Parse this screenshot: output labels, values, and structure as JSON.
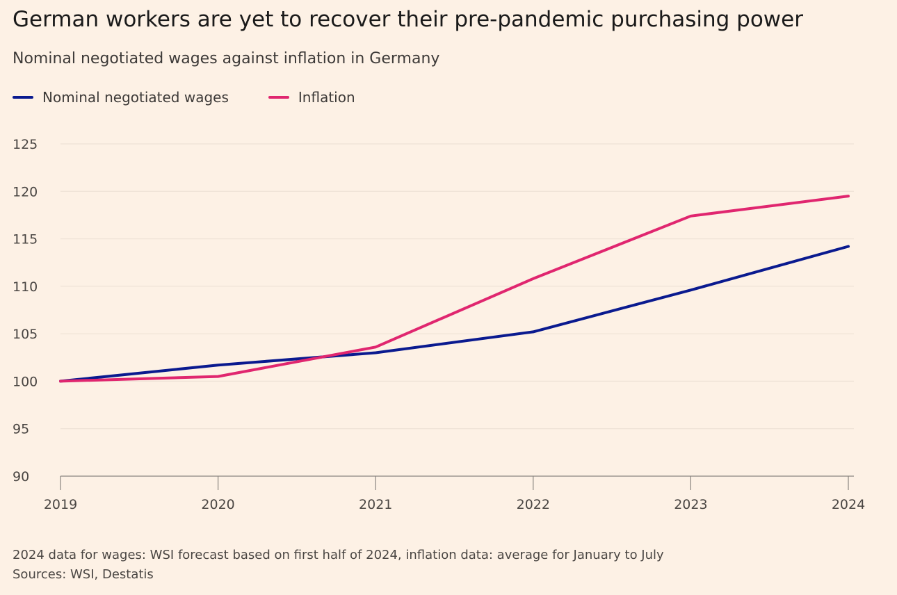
{
  "header": {
    "title": "German workers are yet to recover their pre-pandemic purchasing power",
    "subtitle": "Nominal negotiated wages against inflation in Germany"
  },
  "legend": {
    "wages_label": "Nominal negotiated wages",
    "inflation_label": "Inflation"
  },
  "colors": {
    "wages": "#0a1a8f",
    "inflation": "#e0266f",
    "gridline": "#ece0d3",
    "axis": "#8a8580"
  },
  "footer": {
    "note": "2024 data for wages: WSI forecast based on first half of 2024, inflation data: average for January to July",
    "sources": "Sources: WSI, Destatis"
  },
  "chart_data": {
    "type": "line",
    "title": "German workers are yet to recover their pre-pandemic purchasing power",
    "subtitle": "Nominal negotiated wages against inflation in Germany",
    "xlabel": "",
    "ylabel": "",
    "x": [
      2019,
      2020,
      2021,
      2022,
      2023,
      2024
    ],
    "x_tick_labels": [
      "2019",
      "2020",
      "2021",
      "2022",
      "2023",
      "2024"
    ],
    "ylim": [
      90,
      125
    ],
    "y_ticks": [
      90,
      95,
      100,
      105,
      110,
      115,
      120,
      125
    ],
    "y_tick_labels": [
      "90",
      "95",
      "100",
      "105",
      "110",
      "115",
      "120",
      "125"
    ],
    "grid": true,
    "legend_position": "top-left",
    "series": [
      {
        "name": "Nominal negotiated wages",
        "color_key": "wages",
        "values": [
          100,
          101.7,
          103.0,
          105.2,
          109.6,
          114.2
        ]
      },
      {
        "name": "Inflation",
        "color_key": "inflation",
        "values": [
          100,
          100.5,
          103.6,
          110.8,
          117.4,
          119.5
        ]
      }
    ]
  }
}
